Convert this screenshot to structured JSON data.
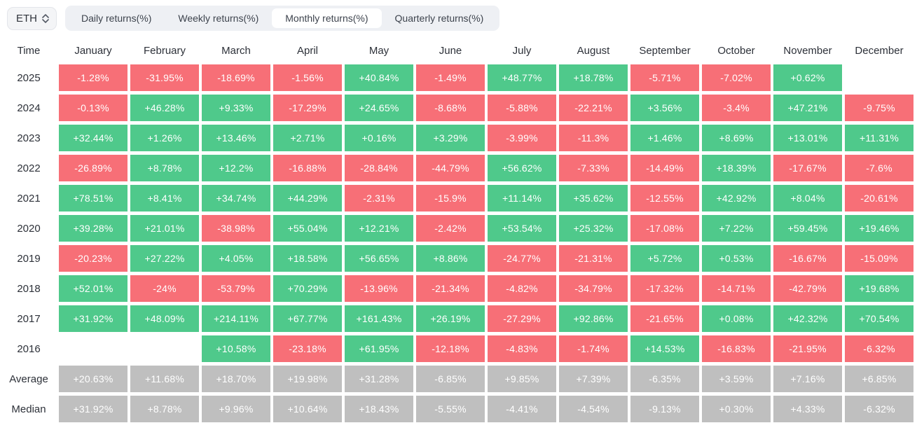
{
  "toolbar": {
    "symbol_select": {
      "value": "ETH",
      "icon": "updown-chevron-icon"
    },
    "tabs": [
      {
        "label": "Daily returns(%)",
        "active": false
      },
      {
        "label": "Weekly returns(%)",
        "active": false
      },
      {
        "label": "Monthly returns(%)",
        "active": true
      },
      {
        "label": "Quarterly returns(%)",
        "active": false
      }
    ]
  },
  "colors": {
    "positive": "#4fc98b",
    "negative": "#f76f77",
    "summary": "#bfbfbf",
    "tabbar_bg": "#eef0f4",
    "active_tab_bg": "#ffffff"
  },
  "chart_data": {
    "type": "heatmap",
    "title": "Monthly returns(%)",
    "columns": [
      "Time",
      "January",
      "February",
      "March",
      "April",
      "May",
      "June",
      "July",
      "August",
      "September",
      "October",
      "November",
      "December"
    ],
    "rows": [
      {
        "label": "2025",
        "kind": "year",
        "values": [
          "-1.28%",
          "-31.95%",
          "-18.69%",
          "-1.56%",
          "+40.84%",
          "-1.49%",
          "+48.77%",
          "+18.78%",
          "-5.71%",
          "-7.02%",
          "+0.62%",
          null
        ]
      },
      {
        "label": "2024",
        "kind": "year",
        "values": [
          "-0.13%",
          "+46.28%",
          "+9.33%",
          "-17.29%",
          "+24.65%",
          "-8.68%",
          "-5.88%",
          "-22.21%",
          "+3.56%",
          "-3.4%",
          "+47.21%",
          "-9.75%"
        ]
      },
      {
        "label": "2023",
        "kind": "year",
        "values": [
          "+32.44%",
          "+1.26%",
          "+13.46%",
          "+2.71%",
          "+0.16%",
          "+3.29%",
          "-3.99%",
          "-11.3%",
          "+1.46%",
          "+8.69%",
          "+13.01%",
          "+11.31%"
        ]
      },
      {
        "label": "2022",
        "kind": "year",
        "values": [
          "-26.89%",
          "+8.78%",
          "+12.2%",
          "-16.88%",
          "-28.84%",
          "-44.79%",
          "+56.62%",
          "-7.33%",
          "-14.49%",
          "+18.39%",
          "-17.67%",
          "-7.6%"
        ]
      },
      {
        "label": "2021",
        "kind": "year",
        "values": [
          "+78.51%",
          "+8.41%",
          "+34.74%",
          "+44.29%",
          "-2.31%",
          "-15.9%",
          "+11.14%",
          "+35.62%",
          "-12.55%",
          "+42.92%",
          "+8.04%",
          "-20.61%"
        ]
      },
      {
        "label": "2020",
        "kind": "year",
        "values": [
          "+39.28%",
          "+21.01%",
          "-38.98%",
          "+55.04%",
          "+12.21%",
          "-2.42%",
          "+53.54%",
          "+25.32%",
          "-17.08%",
          "+7.22%",
          "+59.45%",
          "+19.46%"
        ]
      },
      {
        "label": "2019",
        "kind": "year",
        "values": [
          "-20.23%",
          "+27.22%",
          "+4.05%",
          "+18.58%",
          "+56.65%",
          "+8.86%",
          "-24.77%",
          "-21.31%",
          "+5.72%",
          "+0.53%",
          "-16.67%",
          "-15.09%"
        ]
      },
      {
        "label": "2018",
        "kind": "year",
        "values": [
          "+52.01%",
          "-24%",
          "-53.79%",
          "+70.29%",
          "-13.96%",
          "-21.34%",
          "-4.82%",
          "-34.79%",
          "-17.32%",
          "-14.71%",
          "-42.79%",
          "+19.68%"
        ]
      },
      {
        "label": "2017",
        "kind": "year",
        "values": [
          "+31.92%",
          "+48.09%",
          "+214.11%",
          "+67.77%",
          "+161.43%",
          "+26.19%",
          "-27.29%",
          "+92.86%",
          "-21.65%",
          "+0.08%",
          "+42.32%",
          "+70.54%"
        ]
      },
      {
        "label": "2016",
        "kind": "year",
        "values": [
          null,
          null,
          "+10.58%",
          "-23.18%",
          "+61.95%",
          "-12.18%",
          "-4.83%",
          "-1.74%",
          "+14.53%",
          "-16.83%",
          "-21.95%",
          "-6.32%"
        ]
      },
      {
        "label": "Average",
        "kind": "summary",
        "values": [
          "+20.63%",
          "+11.68%",
          "+18.70%",
          "+19.98%",
          "+31.28%",
          "-6.85%",
          "+9.85%",
          "+7.39%",
          "-6.35%",
          "+3.59%",
          "+7.16%",
          "+6.85%"
        ]
      },
      {
        "label": "Median",
        "kind": "summary",
        "values": [
          "+31.92%",
          "+8.78%",
          "+9.96%",
          "+10.64%",
          "+18.43%",
          "-5.55%",
          "-4.41%",
          "-4.54%",
          "-9.13%",
          "+0.30%",
          "+4.33%",
          "-6.32%"
        ]
      }
    ]
  }
}
